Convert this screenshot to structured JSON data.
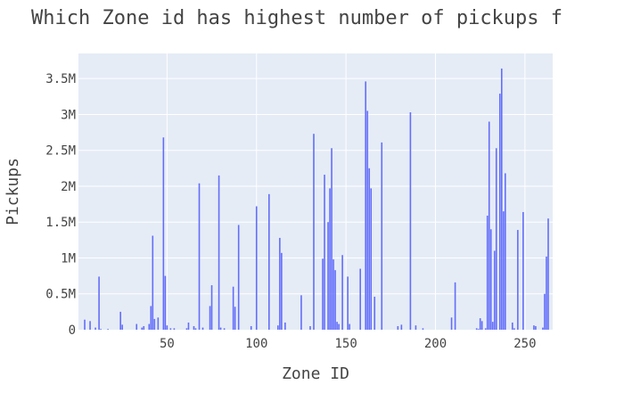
{
  "chart_data": {
    "type": "bar",
    "title": "Which Zone id has highest number of pickups f",
    "xlabel": "Zone ID",
    "ylabel": "Pickups",
    "xlim": [
      0.5,
      265.5
    ],
    "ylim": [
      0,
      3850000
    ],
    "x_ticks": [
      50,
      100,
      150,
      200,
      250
    ],
    "y_ticks": [
      0,
      500000,
      1000000,
      1500000,
      2000000,
      2500000,
      3000000,
      3500000
    ],
    "y_tick_labels": [
      "0",
      "0.5M",
      "1M",
      "1.5M",
      "2M",
      "2.5M",
      "3M",
      "3.5M"
    ],
    "grid": true,
    "plot_bgcolor": "#e5ecf6",
    "bar_color": "#636efa",
    "x": [
      4,
      7,
      10,
      12,
      13,
      17,
      24,
      25,
      33,
      36,
      37,
      40,
      41,
      42,
      43,
      45,
      48,
      49,
      50,
      52,
      54,
      61,
      62,
      65,
      66,
      68,
      70,
      74,
      75,
      79,
      80,
      82,
      87,
      88,
      90,
      97,
      100,
      107,
      112,
      113,
      114,
      116,
      125,
      130,
      132,
      137,
      138,
      140,
      141,
      142,
      143,
      144,
      145,
      146,
      148,
      151,
      152,
      158,
      161,
      162,
      163,
      164,
      166,
      170,
      179,
      181,
      186,
      189,
      193,
      209,
      211,
      223,
      224,
      225,
      226,
      228,
      229,
      230,
      231,
      232,
      233,
      234,
      236,
      237,
      238,
      239,
      243,
      244,
      246,
      249,
      255,
      256,
      260,
      261,
      262,
      263
    ],
    "values": [
      140000,
      120000,
      30000,
      740000,
      10000,
      10000,
      250000,
      70000,
      80000,
      30000,
      50000,
      80000,
      330000,
      1310000,
      150000,
      170000,
      2680000,
      750000,
      60000,
      20000,
      20000,
      20000,
      100000,
      50000,
      20000,
      2040000,
      30000,
      330000,
      620000,
      2150000,
      30000,
      20000,
      600000,
      320000,
      1460000,
      50000,
      1720000,
      1890000,
      60000,
      1280000,
      1070000,
      100000,
      480000,
      50000,
      2730000,
      990000,
      2160000,
      1500000,
      1970000,
      2530000,
      980000,
      830000,
      110000,
      80000,
      1040000,
      740000,
      80000,
      850000,
      3460000,
      3050000,
      2250000,
      1970000,
      460000,
      2610000,
      50000,
      70000,
      3030000,
      60000,
      20000,
      170000,
      660000,
      20000,
      10000,
      160000,
      120000,
      20000,
      1590000,
      2900000,
      1400000,
      110000,
      1100000,
      2530000,
      3290000,
      3640000,
      1650000,
      2180000,
      100000,
      20000,
      1390000,
      1640000,
      60000,
      50000,
      30000,
      500000,
      1020000,
      1550000
    ]
  }
}
